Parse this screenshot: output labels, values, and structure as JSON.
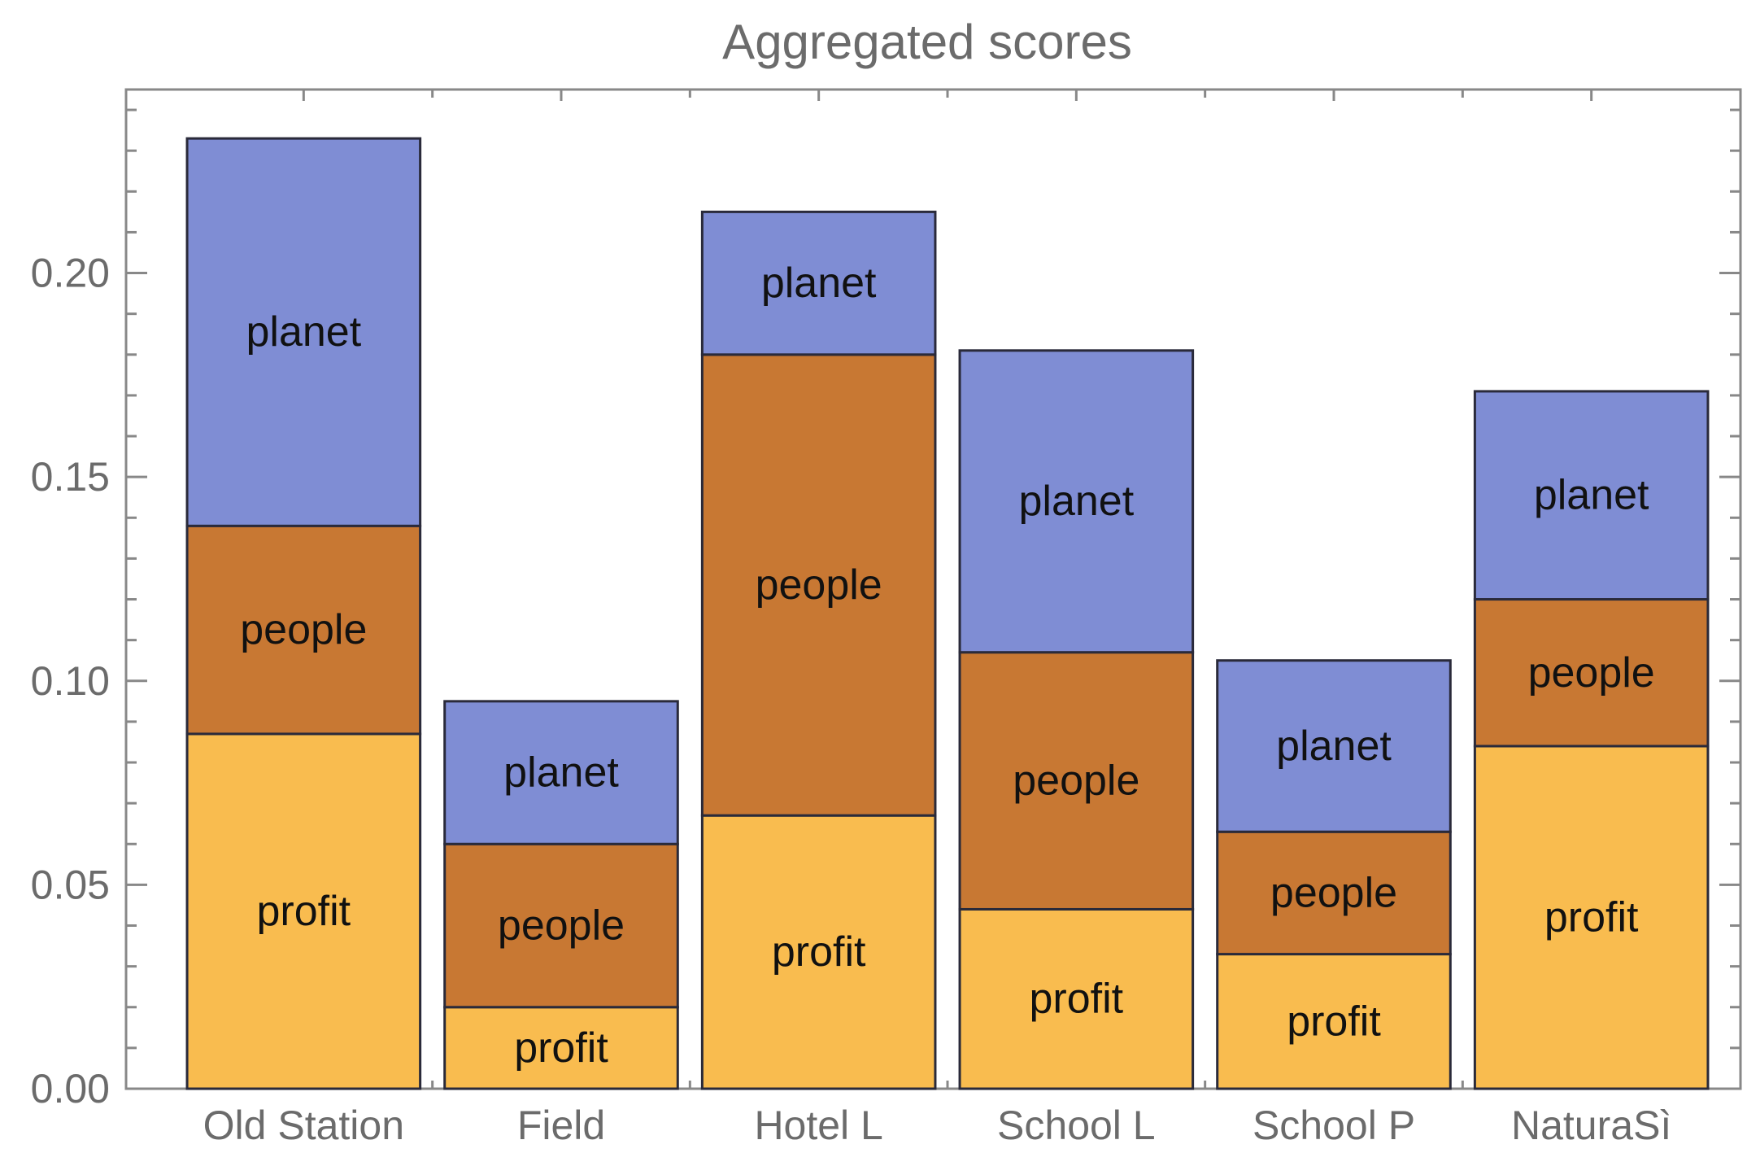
{
  "chart_data": {
    "type": "bar",
    "stacked": true,
    "title": "Aggregated scores",
    "categories": [
      "Old Station",
      "Field",
      "Hotel L",
      "School L",
      "School P",
      "NaturaSì"
    ],
    "series": [
      {
        "name": "profit",
        "color": "#f9bc4f",
        "values": [
          0.087,
          0.02,
          0.067,
          0.044,
          0.033,
          0.084
        ]
      },
      {
        "name": "people",
        "color": "#c87833",
        "values": [
          0.051,
          0.04,
          0.113,
          0.063,
          0.03,
          0.036
        ]
      },
      {
        "name": "planet",
        "color": "#7f8dd4",
        "values": [
          0.095,
          0.035,
          0.035,
          0.074,
          0.042,
          0.051
        ]
      }
    ],
    "ylim": [
      0,
      0.245
    ],
    "yticks": [
      "0.00",
      "0.05",
      "0.10",
      "0.15",
      "0.20"
    ],
    "xlabel": "",
    "ylabel": "",
    "grid": false,
    "legend": "none"
  }
}
